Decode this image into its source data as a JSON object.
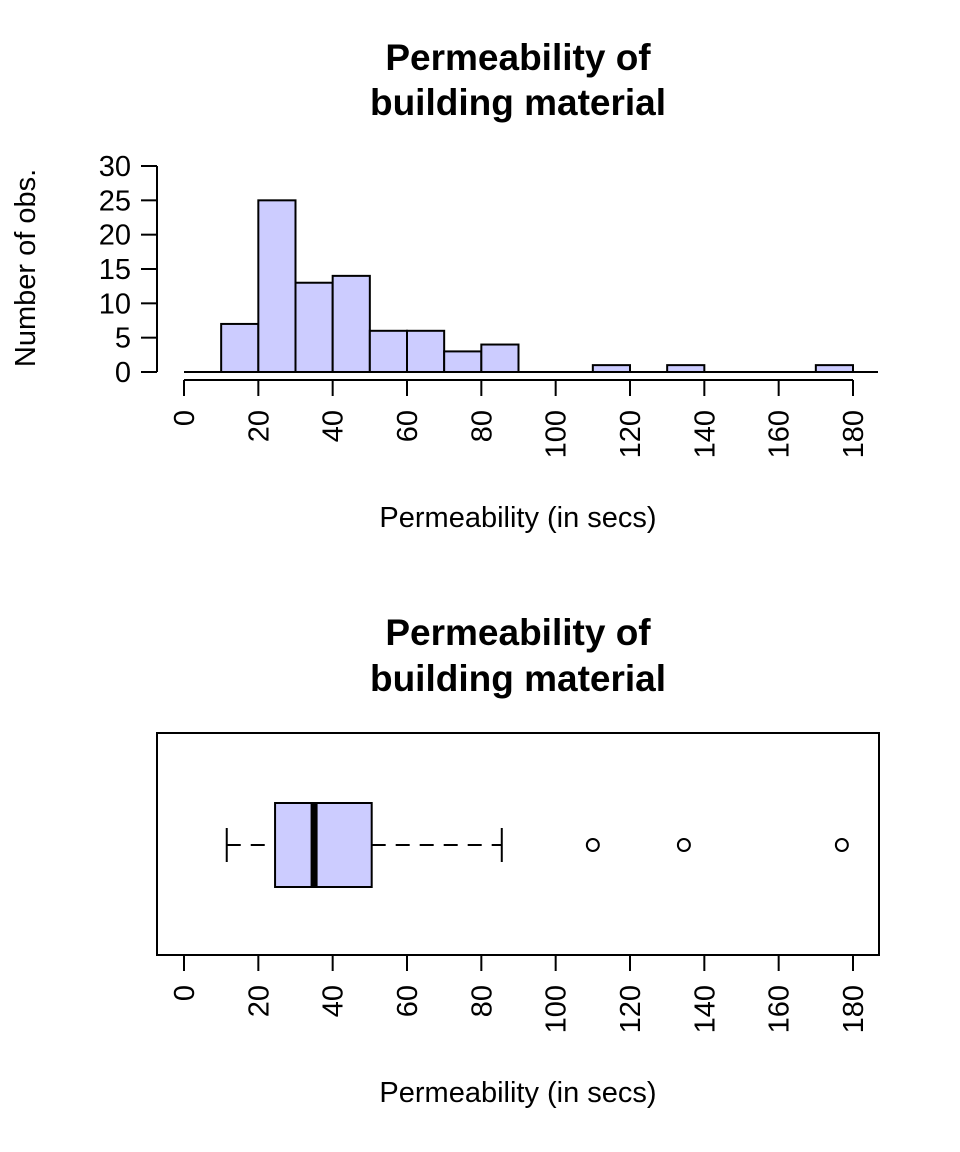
{
  "colors": {
    "bar_fill": "#ccccff",
    "box_fill": "#ccccff",
    "stroke": "#000000",
    "background": "#ffffff"
  },
  "chart_data": [
    {
      "type": "histogram",
      "title": "Permeability of\nbuilding material",
      "title_lines": [
        "Permeability of",
        "building material"
      ],
      "xlabel": "Permeability (in secs)",
      "ylabel": "Number of obs.",
      "xlim": [
        0,
        180
      ],
      "ylim": [
        0,
        30
      ],
      "x_ticks": [
        0,
        20,
        40,
        60,
        80,
        100,
        120,
        140,
        160,
        180
      ],
      "y_ticks": [
        0,
        5,
        10,
        15,
        20,
        25,
        30
      ],
      "bins": [
        {
          "from": 10,
          "to": 20,
          "count": 7
        },
        {
          "from": 20,
          "to": 30,
          "count": 25
        },
        {
          "from": 30,
          "to": 40,
          "count": 13
        },
        {
          "from": 40,
          "to": 50,
          "count": 14
        },
        {
          "from": 50,
          "to": 60,
          "count": 6
        },
        {
          "from": 60,
          "to": 70,
          "count": 6
        },
        {
          "from": 70,
          "to": 80,
          "count": 3
        },
        {
          "from": 80,
          "to": 90,
          "count": 4
        },
        {
          "from": 90,
          "to": 100,
          "count": 0
        },
        {
          "from": 100,
          "to": 110,
          "count": 0
        },
        {
          "from": 110,
          "to": 120,
          "count": 1
        },
        {
          "from": 120,
          "to": 130,
          "count": 0
        },
        {
          "from": 130,
          "to": 140,
          "count": 1
        },
        {
          "from": 140,
          "to": 150,
          "count": 0
        },
        {
          "from": 150,
          "to": 160,
          "count": 0
        },
        {
          "from": 160,
          "to": 170,
          "count": 0
        },
        {
          "from": 170,
          "to": 180,
          "count": 1
        }
      ]
    },
    {
      "type": "boxplot",
      "orientation": "horizontal",
      "title": "Permeability of\nbuilding material",
      "title_lines": [
        "Permeability of",
        "building material"
      ],
      "xlabel": "Permeability (in secs)",
      "xlim": [
        0,
        180
      ],
      "x_ticks": [
        0,
        20,
        40,
        60,
        80,
        100,
        120,
        140,
        160,
        180
      ],
      "whisker_low": 11.5,
      "q1": 24.5,
      "median": 35,
      "q3": 50.5,
      "whisker_high": 85.5,
      "outliers": [
        110,
        134.5,
        177
      ]
    }
  ]
}
